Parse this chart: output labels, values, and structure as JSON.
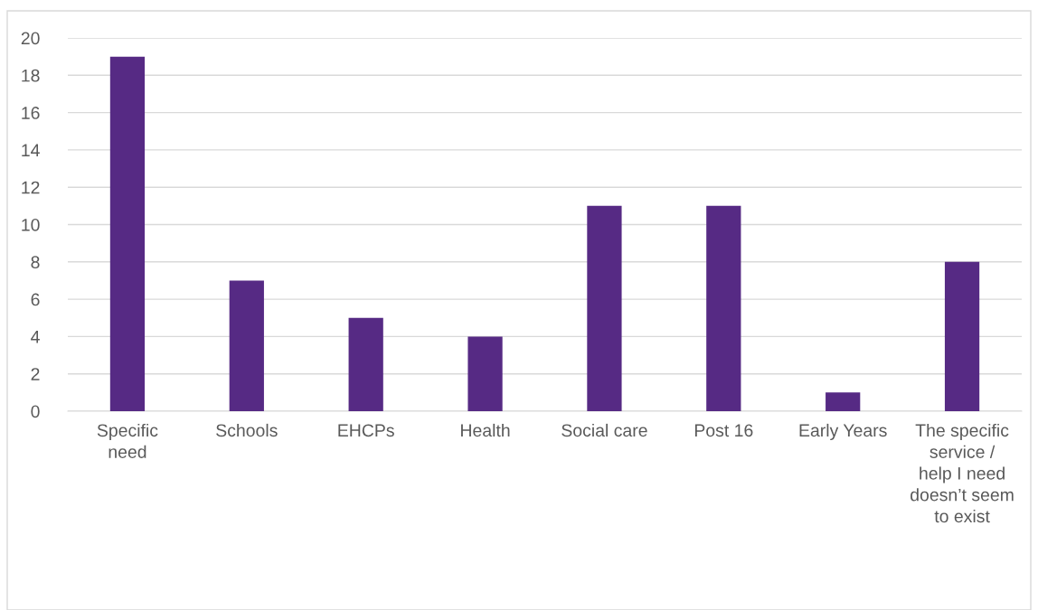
{
  "chart_data": {
    "type": "bar",
    "categories": [
      "Specific need",
      "Schools",
      "EHCPs",
      "Health",
      "Social care",
      "Post 16",
      "Early Years",
      "The specific service / help I need doesn’t seem to exist"
    ],
    "values": [
      19,
      7,
      5,
      4,
      11,
      11,
      1,
      8
    ],
    "color": "#562a84",
    "ylim": [
      0,
      20
    ],
    "yticks": [
      0,
      2,
      4,
      6,
      8,
      10,
      12,
      14,
      16,
      18,
      20
    ],
    "grid": "y"
  }
}
